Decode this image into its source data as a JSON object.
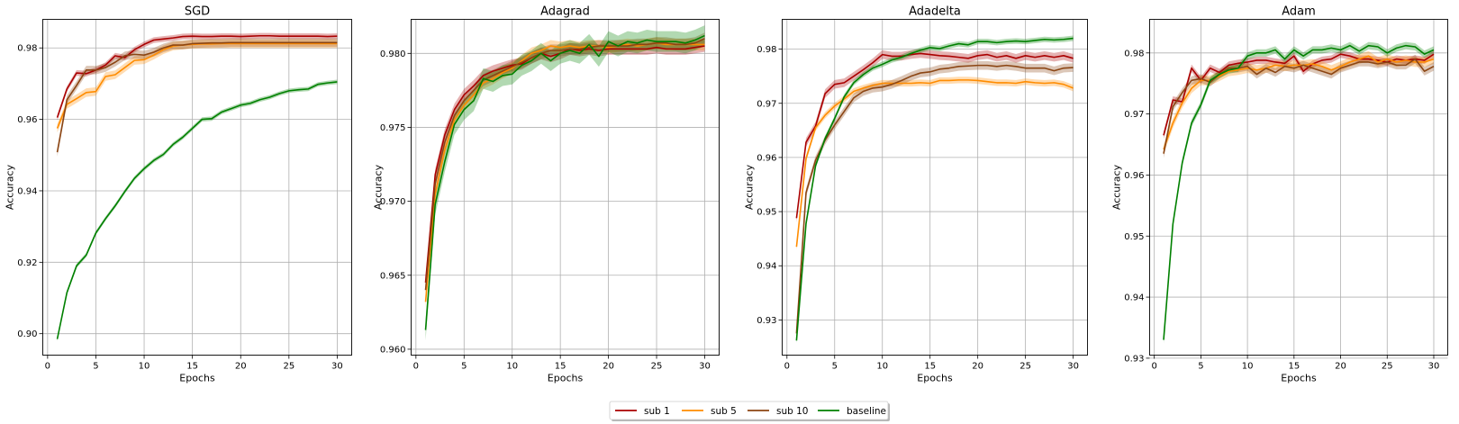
{
  "chart_data": [
    {
      "type": "line",
      "title": "SGD",
      "xlabel": "Epochs",
      "ylabel": "Accuracy",
      "xlim": [
        -0.5,
        31.5
      ],
      "ylim": [
        0.894,
        0.988
      ],
      "xticks": [
        0,
        5,
        10,
        15,
        20,
        25,
        30
      ],
      "yticks": [
        0.9,
        0.92,
        0.94,
        0.96,
        0.98
      ],
      "ytick_labels": [
        "0.90",
        "0.92",
        "0.94",
        "0.96",
        "0.98"
      ],
      "grid": true,
      "x": [
        1,
        2,
        3,
        4,
        5,
        6,
        7,
        8,
        9,
        10,
        11,
        12,
        13,
        14,
        15,
        16,
        17,
        18,
        19,
        20,
        21,
        22,
        23,
        24,
        25,
        26,
        27,
        28,
        29,
        30
      ],
      "series": [
        {
          "name": "sub 1",
          "color": "#aa0000",
          "band": 0.0008,
          "values": [
            0.9605,
            0.9685,
            0.973,
            0.9728,
            0.9738,
            0.9752,
            0.9778,
            0.9773,
            0.9795,
            0.981,
            0.9822,
            0.9825,
            0.9828,
            0.9832,
            0.9833,
            0.9832,
            0.9832,
            0.9833,
            0.9833,
            0.9832,
            0.9833,
            0.9834,
            0.9834,
            0.9833,
            0.9833,
            0.9833,
            0.9833,
            0.9833,
            0.9832,
            0.9833
          ]
        },
        {
          "name": "sub 5",
          "color": "#ff8c00",
          "band": 0.0012,
          "values": [
            0.9575,
            0.9642,
            0.9658,
            0.9675,
            0.9678,
            0.972,
            0.9725,
            0.9745,
            0.9765,
            0.9767,
            0.978,
            0.9795,
            0.9805,
            0.9808,
            0.981,
            0.9811,
            0.9811,
            0.9812,
            0.9812,
            0.9812,
            0.9812,
            0.9812,
            0.9812,
            0.9812,
            0.9812,
            0.9812,
            0.9812,
            0.9812,
            0.9812,
            0.9812
          ]
        },
        {
          "name": "sub 10",
          "color": "#8b4513",
          "band": 0.0012,
          "values": [
            0.9508,
            0.9655,
            0.9695,
            0.9738,
            0.9738,
            0.9745,
            0.976,
            0.9778,
            0.9782,
            0.978,
            0.9788,
            0.98,
            0.9808,
            0.9808,
            0.9812,
            0.9813,
            0.9814,
            0.9814,
            0.9815,
            0.9815,
            0.9815,
            0.9815,
            0.9815,
            0.9815,
            0.9815,
            0.9815,
            0.9815,
            0.9815,
            0.9815,
            0.9815
          ]
        },
        {
          "name": "baseline",
          "color": "#008000",
          "band": 0.0006,
          "values": [
            0.8985,
            0.9115,
            0.919,
            0.922,
            0.9282,
            0.9322,
            0.9358,
            0.9398,
            0.9435,
            0.9462,
            0.9485,
            0.9502,
            0.953,
            0.955,
            0.9575,
            0.96,
            0.9602,
            0.962,
            0.963,
            0.964,
            0.9645,
            0.9655,
            0.9662,
            0.9672,
            0.968,
            0.9683,
            0.9685,
            0.9698,
            0.9702,
            0.9705
          ]
        }
      ]
    },
    {
      "type": "line",
      "title": "Adagrad",
      "xlabel": "Epochs",
      "ylabel": "Accuracy",
      "xlim": [
        -0.5,
        31.5
      ],
      "ylim": [
        0.9596,
        0.9823
      ],
      "xticks": [
        0,
        5,
        10,
        15,
        20,
        25,
        30
      ],
      "yticks": [
        0.96,
        0.965,
        0.97,
        0.975,
        0.98
      ],
      "ytick_labels": [
        "0.960",
        "0.965",
        "0.970",
        "0.975",
        "0.980"
      ],
      "grid": true,
      "x": [
        1,
        2,
        3,
        4,
        5,
        6,
        7,
        8,
        9,
        10,
        11,
        12,
        13,
        14,
        15,
        16,
        17,
        18,
        19,
        20,
        21,
        22,
        23,
        24,
        25,
        26,
        27,
        28,
        29,
        30
      ],
      "series": [
        {
          "name": "sub 1",
          "color": "#aa0000",
          "band": 0.0004,
          "values": [
            0.9645,
            0.9718,
            0.9745,
            0.9762,
            0.9772,
            0.9778,
            0.9785,
            0.9788,
            0.979,
            0.9792,
            0.9793,
            0.9797,
            0.98,
            0.9798,
            0.98,
            0.9803,
            0.9802,
            0.9803,
            0.9802,
            0.9803,
            0.9803,
            0.9803,
            0.9803,
            0.9803,
            0.9804,
            0.9803,
            0.9803,
            0.9803,
            0.9804,
            0.9805
          ]
        },
        {
          "name": "sub 5",
          "color": "#ff8c00",
          "band": 0.0004,
          "values": [
            0.9632,
            0.9705,
            0.9735,
            0.9755,
            0.9765,
            0.9772,
            0.978,
            0.9783,
            0.9787,
            0.979,
            0.9795,
            0.98,
            0.9802,
            0.9805,
            0.9804,
            0.9805,
            0.9804,
            0.9805,
            0.9805,
            0.9804,
            0.9805,
            0.9806,
            0.9805,
            0.9806,
            0.9807,
            0.9806,
            0.9806,
            0.9806,
            0.9806,
            0.9806
          ]
        },
        {
          "name": "sub 10",
          "color": "#8b4513",
          "band": 0.0004,
          "values": [
            0.964,
            0.9712,
            0.974,
            0.9758,
            0.9768,
            0.9775,
            0.9782,
            0.9785,
            0.9788,
            0.9791,
            0.9794,
            0.9797,
            0.98,
            0.9802,
            0.9802,
            0.9803,
            0.9803,
            0.9804,
            0.9805,
            0.9805,
            0.9805,
            0.9805,
            0.9806,
            0.9806,
            0.9807,
            0.9807,
            0.9806,
            0.9806,
            0.9807,
            0.981
          ]
        },
        {
          "name": "baseline",
          "color": "#008000",
          "band": 0.0007,
          "values": [
            0.9613,
            0.9698,
            0.9727,
            0.9752,
            0.9762,
            0.9768,
            0.9783,
            0.9781,
            0.9785,
            0.9786,
            0.9792,
            0.9795,
            0.98,
            0.9795,
            0.98,
            0.9802,
            0.98,
            0.9806,
            0.9798,
            0.9808,
            0.9805,
            0.9808,
            0.9807,
            0.9809,
            0.9808,
            0.9808,
            0.9808,
            0.9807,
            0.9809,
            0.9812
          ]
        }
      ]
    },
    {
      "type": "line",
      "title": "Adadelta",
      "xlabel": "Epochs",
      "ylabel": "Accuracy",
      "xlim": [
        -0.5,
        31.5
      ],
      "ylim": [
        0.9235,
        0.9855
      ],
      "xticks": [
        0,
        5,
        10,
        15,
        20,
        25,
        30
      ],
      "yticks": [
        0.93,
        0.94,
        0.95,
        0.96,
        0.97,
        0.98
      ],
      "ytick_labels": [
        "0.93",
        "0.94",
        "0.95",
        "0.96",
        "0.97",
        "0.98"
      ],
      "grid": true,
      "x": [
        1,
        2,
        3,
        4,
        5,
        6,
        7,
        8,
        9,
        10,
        11,
        12,
        13,
        14,
        15,
        16,
        17,
        18,
        19,
        20,
        21,
        22,
        23,
        24,
        25,
        26,
        27,
        28,
        29,
        30
      ],
      "series": [
        {
          "name": "sub 1",
          "color": "#aa0000",
          "band": 0.0008,
          "values": [
            0.9488,
            0.9628,
            0.9658,
            0.9718,
            0.9735,
            0.9738,
            0.975,
            0.9762,
            0.9775,
            0.979,
            0.9787,
            0.9787,
            0.979,
            0.9792,
            0.979,
            0.9788,
            0.9787,
            0.9785,
            0.9783,
            0.9788,
            0.979,
            0.9785,
            0.9788,
            0.9783,
            0.9788,
            0.9785,
            0.9788,
            0.9785,
            0.9788,
            0.9783
          ]
        },
        {
          "name": "sub 5",
          "color": "#ff8c00",
          "band": 0.0006,
          "values": [
            0.9435,
            0.9598,
            0.9655,
            0.9678,
            0.9695,
            0.9708,
            0.9722,
            0.9728,
            0.9733,
            0.9737,
            0.9737,
            0.9737,
            0.9737,
            0.9738,
            0.9737,
            0.9742,
            0.9742,
            0.9743,
            0.9743,
            0.9742,
            0.974,
            0.9738,
            0.9738,
            0.9737,
            0.974,
            0.9738,
            0.9737,
            0.9738,
            0.9735,
            0.9728
          ]
        },
        {
          "name": "sub 10",
          "color": "#8b4513",
          "band": 0.0008,
          "values": [
            0.9275,
            0.9535,
            0.9595,
            0.9632,
            0.966,
            0.9685,
            0.971,
            0.9722,
            0.9728,
            0.973,
            0.9735,
            0.9742,
            0.975,
            0.9756,
            0.9758,
            0.9763,
            0.9765,
            0.9768,
            0.9769,
            0.977,
            0.977,
            0.9768,
            0.977,
            0.9768,
            0.9765,
            0.9765,
            0.9765,
            0.976,
            0.9765,
            0.9766
          ]
        },
        {
          "name": "baseline",
          "color": "#008000",
          "band": 0.0005,
          "values": [
            0.9262,
            0.9478,
            0.9585,
            0.9635,
            0.9672,
            0.9712,
            0.9738,
            0.9753,
            0.9765,
            0.9772,
            0.978,
            0.9785,
            0.9792,
            0.9798,
            0.9803,
            0.9801,
            0.9806,
            0.981,
            0.9808,
            0.9814,
            0.9814,
            0.9812,
            0.9814,
            0.9815,
            0.9814,
            0.9816,
            0.9818,
            0.9817,
            0.9818,
            0.982
          ]
        }
      ]
    },
    {
      "type": "line",
      "title": "Adam",
      "xlabel": "Epochs",
      "ylabel": "Accuracy",
      "xlim": [
        -0.5,
        31.5
      ],
      "ylim": [
        0.9305,
        0.9855
      ],
      "xticks": [
        0,
        5,
        10,
        15,
        20,
        25,
        30
      ],
      "yticks": [
        0.93,
        0.94,
        0.95,
        0.96,
        0.97,
        0.98
      ],
      "ytick_labels": [
        "0.93",
        "0.94",
        "0.95",
        "0.96",
        "0.97",
        "0.98"
      ],
      "grid": true,
      "x": [
        1,
        2,
        3,
        4,
        5,
        6,
        7,
        8,
        9,
        10,
        11,
        12,
        13,
        14,
        15,
        16,
        17,
        18,
        19,
        20,
        21,
        22,
        23,
        24,
        25,
        26,
        27,
        28,
        29,
        30
      ],
      "series": [
        {
          "name": "sub 1",
          "color": "#aa0000",
          "band": 0.0006,
          "values": [
            0.9665,
            0.9723,
            0.972,
            0.9775,
            0.9755,
            0.9775,
            0.9768,
            0.978,
            0.9783,
            0.9785,
            0.9788,
            0.9788,
            0.9785,
            0.9783,
            0.9795,
            0.977,
            0.9782,
            0.9788,
            0.979,
            0.9798,
            0.9795,
            0.979,
            0.979,
            0.9788,
            0.9785,
            0.979,
            0.9788,
            0.979,
            0.9788,
            0.9798
          ]
        },
        {
          "name": "sub 5",
          "color": "#ff8c00",
          "band": 0.0008,
          "values": [
            0.9642,
            0.9685,
            0.9718,
            0.9742,
            0.9755,
            0.9755,
            0.9762,
            0.977,
            0.9772,
            0.9775,
            0.9772,
            0.9775,
            0.978,
            0.9778,
            0.978,
            0.978,
            0.9782,
            0.9778,
            0.9772,
            0.9778,
            0.9785,
            0.979,
            0.9795,
            0.9785,
            0.979,
            0.9785,
            0.9788,
            0.9785,
            0.9785,
            0.979
          ]
        },
        {
          "name": "sub 10",
          "color": "#8b4513",
          "band": 0.0007,
          "values": [
            0.9635,
            0.9712,
            0.9735,
            0.9755,
            0.9758,
            0.9752,
            0.9765,
            0.9775,
            0.9775,
            0.9778,
            0.9765,
            0.9775,
            0.9768,
            0.9778,
            0.9775,
            0.978,
            0.9775,
            0.977,
            0.9765,
            0.9775,
            0.978,
            0.9785,
            0.9785,
            0.9782,
            0.9785,
            0.978,
            0.978,
            0.979,
            0.977,
            0.9778
          ]
        },
        {
          "name": "baseline",
          "color": "#008000",
          "band": 0.0006,
          "values": [
            0.933,
            0.952,
            0.962,
            0.9685,
            0.9715,
            0.9755,
            0.9765,
            0.9772,
            0.9775,
            0.9795,
            0.98,
            0.98,
            0.9805,
            0.979,
            0.9805,
            0.9795,
            0.9805,
            0.9805,
            0.9808,
            0.9805,
            0.9812,
            0.9803,
            0.9812,
            0.981,
            0.98,
            0.9808,
            0.9812,
            0.981,
            0.9798,
            0.9805
          ]
        }
      ]
    }
  ],
  "legend": {
    "placement": "bottom-center",
    "entries": [
      {
        "label": "sub 1",
        "color": "#aa0000"
      },
      {
        "label": "sub 5",
        "color": "#ff8c00"
      },
      {
        "label": "sub 10",
        "color": "#8b4513"
      },
      {
        "label": "baseline",
        "color": "#008000"
      }
    ]
  }
}
